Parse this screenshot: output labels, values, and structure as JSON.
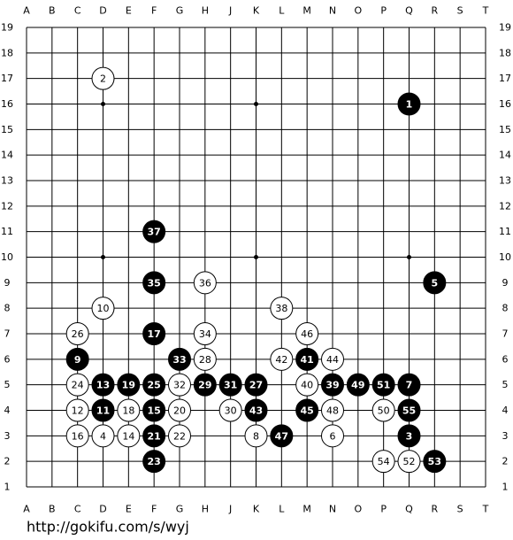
{
  "board": {
    "columns": [
      "A",
      "B",
      "C",
      "D",
      "E",
      "F",
      "G",
      "H",
      "J",
      "K",
      "L",
      "M",
      "N",
      "O",
      "P",
      "Q",
      "R",
      "S",
      "T"
    ],
    "rows": [
      19,
      18,
      17,
      16,
      15,
      14,
      13,
      12,
      11,
      10,
      9,
      8,
      7,
      6,
      5,
      4,
      3,
      2,
      1
    ],
    "hoshi": [
      "D16",
      "K16",
      "Q16",
      "D10",
      "K10",
      "Q10",
      "D4",
      "K4",
      "Q4"
    ],
    "stones": [
      {
        "label": "1",
        "color": "black",
        "point": "Q16"
      },
      {
        "label": "2",
        "color": "white",
        "point": "D17"
      },
      {
        "label": "3",
        "color": "black",
        "point": "Q3"
      },
      {
        "label": "4",
        "color": "white",
        "point": "D3"
      },
      {
        "label": "5",
        "color": "black",
        "point": "R9"
      },
      {
        "label": "6",
        "color": "white",
        "point": "N3"
      },
      {
        "label": "7",
        "color": "black",
        "point": "Q5"
      },
      {
        "label": "8",
        "color": "white",
        "point": "K3"
      },
      {
        "label": "9",
        "color": "black",
        "point": "C6"
      },
      {
        "label": "10",
        "color": "white",
        "point": "D8"
      },
      {
        "label": "11",
        "color": "black",
        "point": "D4"
      },
      {
        "label": "12",
        "color": "white",
        "point": "C4"
      },
      {
        "label": "13",
        "color": "black",
        "point": "D5"
      },
      {
        "label": "14",
        "color": "white",
        "point": "E3"
      },
      {
        "label": "15",
        "color": "black",
        "point": "F4"
      },
      {
        "label": "16",
        "color": "white",
        "point": "C3"
      },
      {
        "label": "17",
        "color": "black",
        "point": "F7"
      },
      {
        "label": "18",
        "color": "white",
        "point": "E4"
      },
      {
        "label": "19",
        "color": "black",
        "point": "E5"
      },
      {
        "label": "20",
        "color": "white",
        "point": "G4"
      },
      {
        "label": "21",
        "color": "black",
        "point": "F3"
      },
      {
        "label": "22",
        "color": "white",
        "point": "G3"
      },
      {
        "label": "23",
        "color": "black",
        "point": "F2"
      },
      {
        "label": "24",
        "color": "white",
        "point": "C5"
      },
      {
        "label": "25",
        "color": "black",
        "point": "F5"
      },
      {
        "label": "26",
        "color": "white",
        "point": "C7"
      },
      {
        "label": "27",
        "color": "black",
        "point": "K5"
      },
      {
        "label": "28",
        "color": "white",
        "point": "H6"
      },
      {
        "label": "29",
        "color": "black",
        "point": "H5"
      },
      {
        "label": "30",
        "color": "white",
        "point": "J4"
      },
      {
        "label": "31",
        "color": "black",
        "point": "J5"
      },
      {
        "label": "32",
        "color": "white",
        "point": "G5"
      },
      {
        "label": "33",
        "color": "black",
        "point": "G6"
      },
      {
        "label": "34",
        "color": "white",
        "point": "H7"
      },
      {
        "label": "35",
        "color": "black",
        "point": "F9"
      },
      {
        "label": "36",
        "color": "white",
        "point": "H9"
      },
      {
        "label": "37",
        "color": "black",
        "point": "F11"
      },
      {
        "label": "38",
        "color": "white",
        "point": "L8"
      },
      {
        "label": "39",
        "color": "black",
        "point": "N5"
      },
      {
        "label": "40",
        "color": "white",
        "point": "M5"
      },
      {
        "label": "41",
        "color": "black",
        "point": "M6"
      },
      {
        "label": "42",
        "color": "white",
        "point": "L6"
      },
      {
        "label": "43",
        "color": "black",
        "point": "K4"
      },
      {
        "label": "44",
        "color": "white",
        "point": "N6"
      },
      {
        "label": "45",
        "color": "black",
        "point": "M4"
      },
      {
        "label": "46",
        "color": "white",
        "point": "M7"
      },
      {
        "label": "47",
        "color": "black",
        "point": "L3"
      },
      {
        "label": "48",
        "color": "white",
        "point": "N4"
      },
      {
        "label": "49",
        "color": "black",
        "point": "O5"
      },
      {
        "label": "50",
        "color": "white",
        "point": "P4"
      },
      {
        "label": "51",
        "color": "black",
        "point": "P5"
      },
      {
        "label": "52",
        "color": "white",
        "point": "Q2"
      },
      {
        "label": "53",
        "color": "black",
        "point": "R2"
      },
      {
        "label": "54",
        "color": "white",
        "point": "P2"
      },
      {
        "label": "55",
        "color": "black",
        "point": "Q4"
      }
    ]
  },
  "footer": "http://gokifu.com/s/wyj"
}
